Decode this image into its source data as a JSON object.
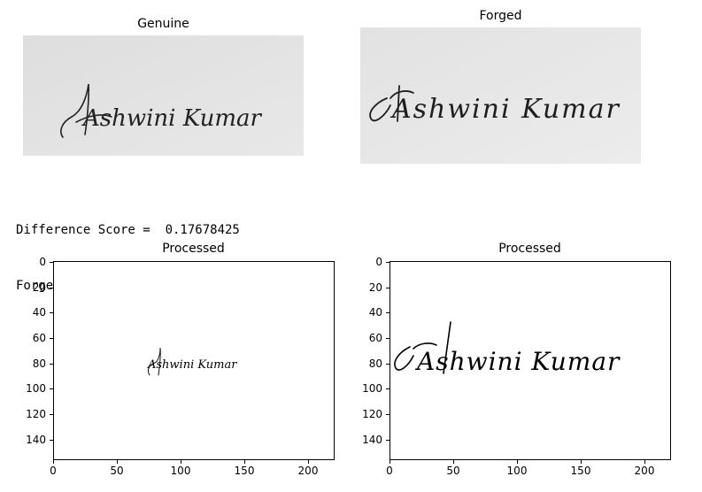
{
  "genuine": {
    "title": "Genuine",
    "signature": "Ashwini Kumar"
  },
  "forged": {
    "title": "Forged",
    "signature": "Ashwini Kumar"
  },
  "output": {
    "score_label": "Difference Score =  0.17678425",
    "verdict": "Forged Signature"
  },
  "plots": [
    {
      "title": "Processed",
      "signature": "Ashwini Kumar"
    },
    {
      "title": "Processed",
      "signature": "Ashwini Kumar"
    }
  ],
  "chart_data": [
    {
      "type": "image",
      "title": "Processed",
      "x_ticks": [
        0,
        50,
        100,
        150,
        200
      ],
      "y_ticks": [
        0,
        20,
        40,
        60,
        80,
        100,
        120,
        140
      ],
      "xlim": [
        0,
        220
      ],
      "ylim": [
        155,
        0
      ]
    },
    {
      "type": "image",
      "title": "Processed",
      "x_ticks": [
        0,
        50,
        100,
        150,
        200
      ],
      "y_ticks": [
        0,
        20,
        40,
        60,
        80,
        100,
        120,
        140
      ],
      "xlim": [
        0,
        220
      ],
      "ylim": [
        155,
        0
      ]
    }
  ]
}
